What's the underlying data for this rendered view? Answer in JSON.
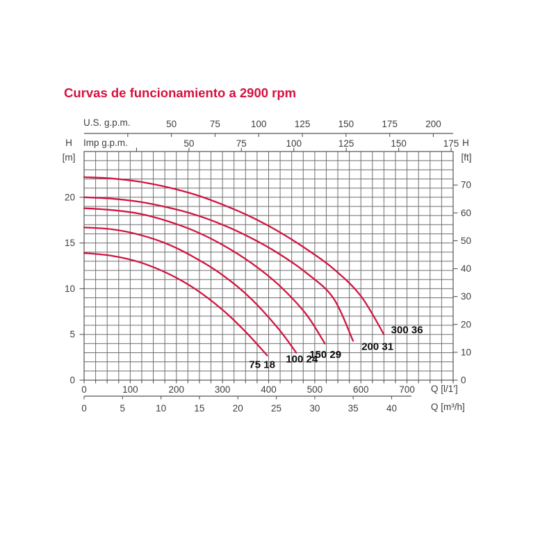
{
  "title": "Curvas de funcionamiento a 2900 rpm",
  "labels": {
    "us": "U.S. g.p.m.",
    "imp": "Imp g.p.m.",
    "h": "H",
    "m_unit": "[m]",
    "ft_unit": "[ft]",
    "q_l": "Q [l/1']",
    "q_m3": "Q [m³/h]"
  },
  "colors": {
    "title": "#d6103f",
    "curve": "#d11541",
    "grid": "#6e6e6e",
    "axis": "#545454",
    "text": "#3d3d3d",
    "curve_label": "#0a0a0a"
  },
  "chart_data": {
    "type": "line",
    "title": "Curvas de funcionamiento a 2900 rpm",
    "x_axis_bottom_primary": {
      "label": "Q [l/1']",
      "ticks": [
        0,
        100,
        200,
        300,
        400,
        500,
        600,
        700
      ],
      "range": [
        0,
        800
      ]
    },
    "x_axis_bottom_secondary": {
      "label": "Q [m³/h]",
      "ticks": [
        0,
        5,
        10,
        15,
        20,
        25,
        30,
        35,
        40
      ],
      "l_per_unit": 16.6667
    },
    "x_axis_top_primary": {
      "label": "U.S. g.p.m.",
      "ticks": [
        50,
        75,
        100,
        125,
        150,
        175,
        200
      ],
      "minor_step": 25,
      "l_per_unit": 3.7854
    },
    "x_axis_top_secondary": {
      "label": "Imp g.p.m.",
      "ticks": [
        50,
        75,
        100,
        125,
        150,
        175
      ],
      "minor_step": 25,
      "l_per_unit": 4.5461
    },
    "y_axis_left": {
      "label": "H [m]",
      "ticks": [
        0,
        5,
        10,
        15,
        20
      ],
      "range": [
        0,
        25
      ],
      "minor_step": 1
    },
    "y_axis_right": {
      "label": "H [ft]",
      "ticks": [
        0,
        10,
        20,
        30,
        40,
        50,
        60,
        70
      ],
      "m_per_unit": 0.3048
    },
    "grid": {
      "x_minor_step_l": 25,
      "y_minor_step_m": 1
    },
    "series": [
      {
        "label": "75 18",
        "points": [
          [
            0,
            13.9
          ],
          [
            60,
            13.6
          ],
          [
            120,
            12.9
          ],
          [
            180,
            11.7
          ],
          [
            240,
            10.0
          ],
          [
            300,
            7.7
          ],
          [
            350,
            5.3
          ],
          [
            397,
            2.7
          ]
        ],
        "label_at": [
          386,
          1.7
        ]
      },
      {
        "label": "100 24",
        "points": [
          [
            0,
            16.7
          ],
          [
            60,
            16.5
          ],
          [
            120,
            15.9
          ],
          [
            180,
            14.9
          ],
          [
            240,
            13.4
          ],
          [
            300,
            11.5
          ],
          [
            360,
            9.0
          ],
          [
            420,
            5.7
          ],
          [
            460,
            3.0
          ]
        ],
        "label_at": [
          472,
          2.3
        ]
      },
      {
        "label": "150 29",
        "points": [
          [
            0,
            18.8
          ],
          [
            60,
            18.6
          ],
          [
            120,
            18.2
          ],
          [
            180,
            17.4
          ],
          [
            240,
            16.3
          ],
          [
            300,
            14.8
          ],
          [
            360,
            12.9
          ],
          [
            420,
            10.5
          ],
          [
            480,
            7.3
          ],
          [
            522,
            4.0
          ]
        ],
        "label_at": [
          523,
          2.8
        ]
      },
      {
        "label": "200 31",
        "points": [
          [
            0,
            20.0
          ],
          [
            60,
            19.85
          ],
          [
            120,
            19.5
          ],
          [
            180,
            18.9
          ],
          [
            240,
            18.1
          ],
          [
            300,
            17.0
          ],
          [
            360,
            15.6
          ],
          [
            420,
            13.9
          ],
          [
            480,
            11.8
          ],
          [
            540,
            9.0
          ],
          [
            583,
            4.3
          ]
        ],
        "label_at": [
          636,
          3.7
        ]
      },
      {
        "label": "300 36",
        "points": [
          [
            0,
            22.2
          ],
          [
            60,
            22.05
          ],
          [
            120,
            21.7
          ],
          [
            180,
            21.1
          ],
          [
            240,
            20.3
          ],
          [
            300,
            19.2
          ],
          [
            360,
            17.9
          ],
          [
            420,
            16.3
          ],
          [
            480,
            14.4
          ],
          [
            540,
            12.2
          ],
          [
            600,
            9.2
          ],
          [
            650,
            5.0
          ]
        ],
        "label_at": [
          700,
          5.5
        ]
      }
    ]
  }
}
